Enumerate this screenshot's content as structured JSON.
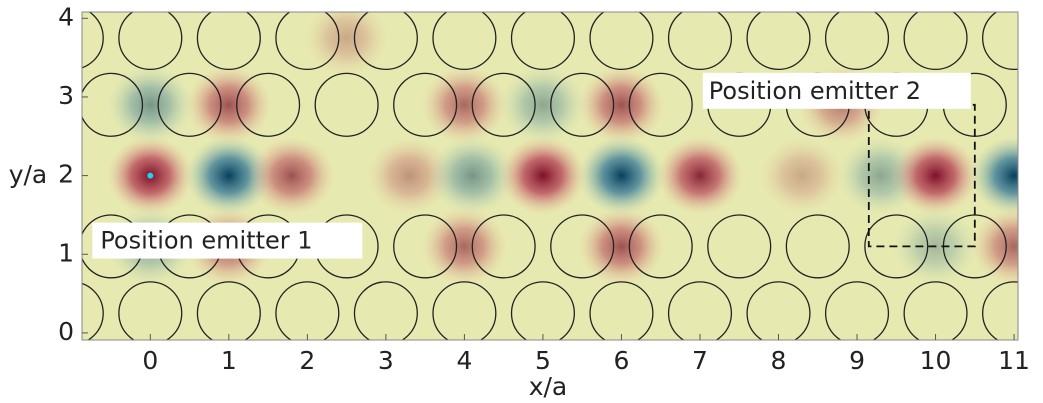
{
  "chart_data": {
    "type": "field-map",
    "xlabel": "x/a",
    "ylabel": "y/a",
    "xlim": [
      -0.87,
      11.05
    ],
    "ylim": [
      -0.09,
      4.08
    ],
    "xticks": [
      0,
      1,
      2,
      3,
      4,
      5,
      6,
      7,
      8,
      9,
      10,
      11
    ],
    "yticks": [
      0,
      1,
      2,
      3,
      4
    ],
    "rod_radius": 0.4,
    "rods": {
      "x": [
        -1,
        0,
        1,
        2,
        3,
        4,
        5,
        6,
        7,
        8,
        9,
        10,
        11,
        -0.5,
        0.5,
        1.5,
        2.5,
        3.5,
        4.5,
        5.5,
        6.5,
        7.5,
        8.5,
        9.5,
        10.5,
        -0.5,
        0.5,
        1.5,
        2.5,
        3.5,
        4.5,
        5.5,
        6.5,
        7.5,
        8.5,
        9.5,
        10.5,
        -1,
        0,
        1,
        2,
        3,
        4,
        5,
        6,
        7,
        8,
        9,
        10,
        11
      ],
      "y": [
        0.25,
        0.25,
        0.25,
        0.25,
        0.25,
        0.25,
        0.25,
        0.25,
        0.25,
        0.25,
        0.25,
        0.25,
        0.25,
        1.1,
        1.1,
        1.1,
        1.1,
        1.1,
        1.1,
        1.1,
        1.1,
        1.1,
        1.1,
        1.1,
        1.1,
        2.9,
        2.9,
        2.9,
        2.9,
        2.9,
        2.9,
        2.9,
        2.9,
        2.9,
        2.9,
        2.9,
        2.9,
        3.75,
        3.75,
        3.75,
        3.75,
        3.75,
        3.75,
        3.75,
        3.75,
        3.75,
        3.75,
        3.75,
        3.75,
        3.75
      ]
    },
    "field": {
      "x": [
        0,
        1,
        1.8,
        3.3,
        4.1,
        5,
        6,
        7,
        8.3,
        9.3,
        10,
        11,
        0,
        1,
        4,
        5,
        6,
        0,
        1,
        4,
        6,
        10,
        11,
        8.8,
        2.5
      ],
      "y": [
        2,
        2,
        2,
        2,
        2,
        2,
        2,
        2,
        2,
        2,
        2,
        2,
        2.9,
        2.9,
        2.9,
        2.9,
        2.9,
        1.1,
        1.1,
        1.1,
        1.1,
        1.1,
        1.1,
        2.9,
        3.75
      ],
      "values": [
        1,
        -1,
        0.7,
        0.4,
        -0.5,
        1,
        -1,
        0.9,
        0.3,
        -0.4,
        1,
        -1,
        -0.5,
        0.7,
        0.6,
        -0.4,
        0.7,
        -0.4,
        0.6,
        0.6,
        0.7,
        -0.3,
        0.6,
        0.5,
        0.3
      ]
    },
    "emitters": [
      {
        "label": "Position emitter 1",
        "x": 0,
        "y": 2
      },
      {
        "label": "Position emitter 2",
        "region": {
          "x": [
            9.15,
            10.5
          ],
          "y": [
            1.1,
            2.9
          ]
        }
      }
    ]
  }
}
